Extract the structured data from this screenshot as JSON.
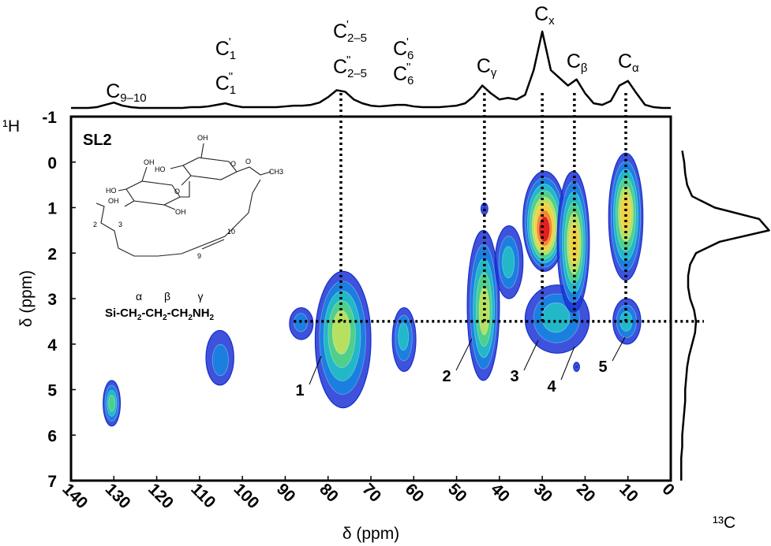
{
  "chart_data": {
    "type": "hetcor",
    "sample_label": "SL2",
    "xlabel": "δ (ppm)",
    "ylabel": "δ (ppm)",
    "x_nucleus": "¹³C",
    "y_nucleus": "¹H",
    "xlim": [
      140,
      0
    ],
    "xticks": [
      140,
      130,
      120,
      110,
      100,
      90,
      80,
      70,
      60,
      50,
      40,
      30,
      20,
      10,
      0
    ],
    "ylim": [
      -1,
      7
    ],
    "yticks": [
      -1,
      0,
      1,
      2,
      3,
      4,
      5,
      6,
      7
    ],
    "peaks": [
      {
        "x": 130.5,
        "y": 5.3,
        "x_range": [
          132.5,
          128.5
        ],
        "y_range": [
          4.8,
          5.8
        ],
        "intensity": 0.45
      },
      {
        "x": 105,
        "y": 4.4,
        "x_range": [
          108.5,
          102
        ],
        "y_range": [
          3.7,
          4.9
        ],
        "intensity": 0.3
      },
      {
        "x": 86.5,
        "y": 3.5,
        "x_range": [
          89,
          83.5
        ],
        "y_range": [
          3.2,
          3.9
        ],
        "intensity": 0.3
      },
      {
        "x": 77,
        "y": 3.7,
        "x_range": [
          83,
          70
        ],
        "y_range": [
          2.4,
          5.4
        ],
        "intensity": 0.6
      },
      {
        "x": 62.5,
        "y": 3.8,
        "x_range": [
          65,
          59.5
        ],
        "y_range": [
          3.2,
          4.6
        ],
        "intensity": 0.35
      },
      {
        "x": 43.5,
        "y": 3.3,
        "x_range": [
          47.5,
          40
        ],
        "y_range": [
          1.5,
          4.8
        ],
        "intensity": 0.65
      },
      {
        "x": 38,
        "y": 2.2,
        "x_range": [
          41,
          34.5
        ],
        "y_range": [
          1.4,
          3.0
        ],
        "intensity": 0.35
      },
      {
        "x": 29.5,
        "y": 1.5,
        "x_range": [
          34.5,
          24.5
        ],
        "y_range": [
          0.2,
          2.4
        ],
        "intensity": 1.0
      },
      {
        "x": 27,
        "y": 3.4,
        "x_range": [
          34,
          19
        ],
        "y_range": [
          2.7,
          4.2
        ],
        "intensity": 0.4
      },
      {
        "x": 22.5,
        "y": 1.8,
        "x_range": [
          26.5,
          19
        ],
        "y_range": [
          0.2,
          3.3
        ],
        "intensity": 0.7
      },
      {
        "x": 10.5,
        "y": 1.1,
        "x_range": [
          14.5,
          6.5
        ],
        "y_range": [
          -0.2,
          2.6
        ],
        "intensity": 0.75
      },
      {
        "x": 10.5,
        "y": 3.5,
        "x_range": [
          13.5,
          7
        ],
        "y_range": [
          3.0,
          4.0
        ],
        "intensity": 0.35
      },
      {
        "x": 43.5,
        "y": 1.0,
        "x_range": [
          44.3,
          42.7
        ],
        "y_range": [
          0.9,
          1.15
        ],
        "intensity": 0.1
      },
      {
        "x": 22,
        "y": 4.5,
        "x_range": [
          22.7,
          21.3
        ],
        "y_range": [
          4.4,
          4.6
        ],
        "intensity": 0.1
      }
    ],
    "peak_labels": [
      "1",
      "2",
      "3",
      "4",
      "5"
    ],
    "guides": {
      "x": [
        77,
        43.5,
        30,
        22.5,
        10.5
      ],
      "y": 3.5
    },
    "top_projection": {
      "x": [
        140,
        138,
        136,
        134,
        132,
        130,
        128,
        126,
        124,
        122,
        120,
        118,
        116,
        114,
        112,
        110,
        108,
        106,
        104,
        102,
        100,
        98,
        96,
        94,
        92,
        90,
        88,
        86,
        84,
        82,
        80,
        78,
        76,
        74,
        72,
        70,
        68,
        66,
        64,
        62,
        60,
        58,
        56,
        54,
        52,
        50,
        48,
        46,
        44,
        42,
        40,
        38,
        36,
        34,
        32,
        30,
        28,
        26,
        24,
        22,
        20,
        18,
        16,
        14,
        12,
        10,
        8,
        6,
        4,
        2,
        0
      ],
      "values": [
        0.01,
        0.01,
        0.01,
        0.02,
        0.05,
        0.08,
        0.04,
        0.02,
        0.01,
        0.01,
        0.01,
        0.01,
        0.01,
        0.01,
        0.02,
        0.02,
        0.03,
        0.05,
        0.07,
        0.04,
        0.02,
        0.02,
        0.02,
        0.02,
        0.02,
        0.03,
        0.04,
        0.04,
        0.05,
        0.08,
        0.15,
        0.24,
        0.22,
        0.12,
        0.07,
        0.04,
        0.03,
        0.04,
        0.05,
        0.05,
        0.03,
        0.02,
        0.02,
        0.02,
        0.03,
        0.04,
        0.07,
        0.16,
        0.3,
        0.2,
        0.12,
        0.14,
        0.12,
        0.18,
        0.5,
        1.0,
        0.5,
        0.4,
        0.3,
        0.38,
        0.2,
        0.07,
        0.05,
        0.1,
        0.3,
        0.36,
        0.2,
        0.05,
        0.02,
        0.01,
        0.01
      ]
    },
    "side_projection": {
      "y": [
        -0.25,
        0,
        0.25,
        0.5,
        0.75,
        1,
        1.25,
        1.5,
        1.75,
        2,
        2.25,
        2.5,
        2.75,
        3,
        3.25,
        3.5,
        3.75,
        4,
        4.25,
        4.5,
        4.75,
        5,
        5.25,
        5.5,
        5.75,
        6,
        6.25,
        6.5,
        6.75,
        7
      ],
      "values": [
        0.02,
        0.04,
        0.05,
        0.07,
        0.12,
        0.35,
        0.8,
        0.9,
        0.4,
        0.16,
        0.1,
        0.08,
        0.08,
        0.1,
        0.14,
        0.16,
        0.15,
        0.12,
        0.09,
        0.07,
        0.06,
        0.05,
        0.05,
        0.04,
        0.03,
        0.02,
        0.02,
        0.01,
        0.01,
        0.01
      ]
    },
    "assignments": [
      {
        "x": 130,
        "lines": [
          {
            "text": "C",
            "sub": "9–10"
          }
        ]
      },
      {
        "x": 104.5,
        "lines": [
          {
            "text": "C",
            "sup": "'",
            "sub": "1"
          },
          {
            "text": "C",
            "sup": "\"",
            "sub": "1"
          }
        ]
      },
      {
        "x": 77,
        "lines": [
          {
            "text": "C",
            "sup": "'",
            "sub": "2–5"
          },
          {
            "text": "C",
            "sup": "\"",
            "sub": "2–5"
          }
        ]
      },
      {
        "x": 63,
        "lines": [
          {
            "text": "C",
            "sup": "'",
            "sub": "6"
          },
          {
            "text": "C",
            "sup": "\"",
            "sub": "6"
          }
        ]
      },
      {
        "x": 43.5,
        "lines": [
          {
            "text": "C",
            "sub": "γ"
          }
        ]
      },
      {
        "x": 30,
        "lines": [
          {
            "text": "C",
            "sub": "x"
          }
        ]
      },
      {
        "x": 22.5,
        "lines": [
          {
            "text": "C",
            "sub": "β"
          }
        ]
      },
      {
        "x": 10.5,
        "lines": [
          {
            "text": "C",
            "sub": "α"
          }
        ]
      }
    ],
    "linker": {
      "greek": [
        "α",
        "β",
        "γ"
      ],
      "formula": [
        {
          "text": "Si-CH",
          "sub": "2"
        },
        {
          "text": "-CH",
          "sub": "2"
        },
        {
          "text": "-CH",
          "sub": "2"
        },
        {
          "text": "NH",
          "sub": "2"
        }
      ]
    },
    "structure_labels": [
      "OH",
      "HO",
      "O",
      "O",
      "CH3",
      "HO",
      "OH",
      "OH",
      "O",
      "OH",
      "2",
      "3",
      "9",
      "10"
    ]
  }
}
